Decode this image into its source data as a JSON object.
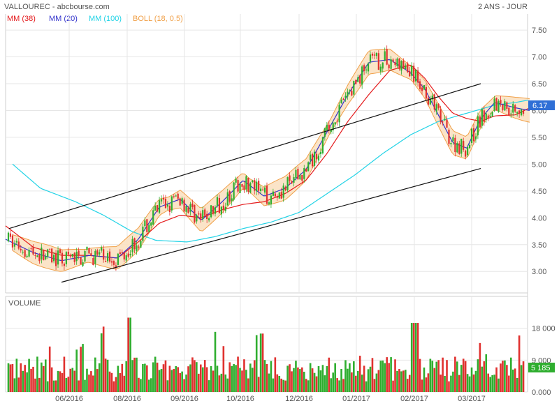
{
  "header": {
    "title": "VALLOUREC - abcbourse.com",
    "period": "2 ANS - JOUR"
  },
  "legend": [
    {
      "label": "MM (38)",
      "color": "#e41a1c"
    },
    {
      "label": "MM (20)",
      "color": "#3333cc"
    },
    {
      "label": "MM (100)",
      "color": "#22d3e6"
    },
    {
      "label": "BOLL (18, 0.5)",
      "color": "#f0a048"
    }
  ],
  "colors": {
    "up": "#2fae2f",
    "down": "#e0312f",
    "boll_fill": "#fbe1c2",
    "boll_line": "#f0a048",
    "badge": "#2f6fd6",
    "vol_badge": "#2fae2f",
    "grid": "#e6e6e6",
    "trendline": "#111111"
  },
  "chart_data": [
    {
      "type": "candlestick",
      "title": "VALLOUREC",
      "x_ticks": [
        "06/2016",
        "08/2016",
        "09/2016",
        "10/2016",
        "12/2016",
        "01/2017",
        "02/2017",
        "03/2017"
      ],
      "y_ticks": [
        "7.50",
        "7.00",
        "6.50",
        "6.00",
        "5.50",
        "5.00",
        "4.50",
        "4.00",
        "3.50",
        "3.00"
      ],
      "ylim": [
        2.6,
        7.8
      ],
      "last_price": "6.17",
      "grid": true,
      "series": [
        {
          "name": "MM (38)",
          "points": [
            [
              0,
              3.85
            ],
            [
              40,
              3.45
            ],
            [
              80,
              3.3
            ],
            [
              120,
              3.3
            ],
            [
              160,
              3.25
            ],
            [
              190,
              3.55
            ],
            [
              220,
              3.9
            ],
            [
              250,
              4.05
            ],
            [
              280,
              4.0
            ],
            [
              310,
              4.15
            ],
            [
              340,
              4.25
            ],
            [
              370,
              4.3
            ],
            [
              400,
              4.45
            ],
            [
              430,
              4.7
            ],
            [
              460,
              5.2
            ],
            [
              490,
              5.8
            ],
            [
              520,
              6.3
            ],
            [
              550,
              6.75
            ],
            [
              580,
              6.85
            ],
            [
              600,
              6.6
            ],
            [
              620,
              6.25
            ],
            [
              640,
              5.95
            ],
            [
              660,
              5.85
            ],
            [
              680,
              5.8
            ],
            [
              700,
              5.9
            ],
            [
              730,
              5.92
            ],
            [
              750,
              6.05
            ]
          ]
        },
        {
          "name": "MM (20)",
          "points": [
            [
              0,
              3.6
            ],
            [
              40,
              3.35
            ],
            [
              80,
              3.2
            ],
            [
              120,
              3.3
            ],
            [
              160,
              3.25
            ],
            [
              190,
              3.6
            ],
            [
              220,
              4.2
            ],
            [
              250,
              4.35
            ],
            [
              280,
              3.95
            ],
            [
              310,
              4.3
            ],
            [
              340,
              4.7
            ],
            [
              370,
              4.4
            ],
            [
              400,
              4.55
            ],
            [
              430,
              4.9
            ],
            [
              460,
              5.6
            ],
            [
              490,
              6.3
            ],
            [
              520,
              6.9
            ],
            [
              550,
              6.95
            ],
            [
              580,
              6.7
            ],
            [
              600,
              6.4
            ],
            [
              620,
              5.9
            ],
            [
              640,
              5.4
            ],
            [
              660,
              5.3
            ],
            [
              680,
              5.85
            ],
            [
              700,
              6.15
            ],
            [
              730,
              6.05
            ],
            [
              750,
              6.0
            ]
          ]
        },
        {
          "name": "MM (100)",
          "points": [
            [
              10,
              5.0
            ],
            [
              50,
              4.55
            ],
            [
              100,
              4.3
            ],
            [
              140,
              4.05
            ],
            [
              180,
              3.75
            ],
            [
              215,
              3.58
            ],
            [
              260,
              3.55
            ],
            [
              300,
              3.65
            ],
            [
              340,
              3.8
            ],
            [
              380,
              3.92
            ],
            [
              420,
              4.1
            ],
            [
              460,
              4.45
            ],
            [
              500,
              4.8
            ],
            [
              540,
              5.2
            ],
            [
              580,
              5.55
            ],
            [
              620,
              5.8
            ],
            [
              660,
              5.95
            ],
            [
              700,
              6.1
            ],
            [
              730,
              6.15
            ],
            [
              750,
              6.2
            ]
          ]
        }
      ],
      "trendlines": [
        {
          "points": [
            [
              5,
              3.8
            ],
            [
              680,
              6.5
            ]
          ]
        },
        {
          "points": [
            [
              80,
              2.8
            ],
            [
              680,
              4.92
            ]
          ]
        }
      ]
    },
    {
      "type": "bar",
      "title": "VOLUME",
      "y_ticks": [
        "18 000",
        "9 000",
        "0.000"
      ],
      "ylim": [
        0,
        27000
      ],
      "last_volume": "5 185",
      "grid": true
    }
  ]
}
